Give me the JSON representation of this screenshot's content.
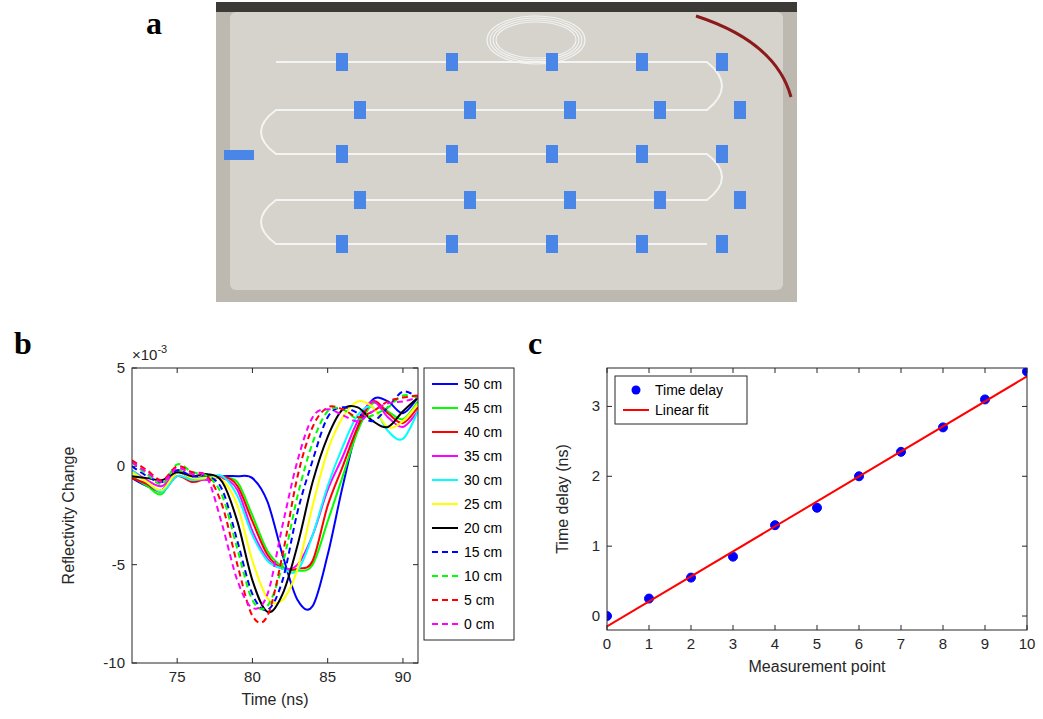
{
  "photo_panel": {
    "label": "a"
  },
  "chart_data": [
    {
      "type": "line",
      "label": "b",
      "xlabel": "Time (ns)",
      "ylabel": "Reflectivity Change",
      "y_multiplier": {
        "base": "×10",
        "exponent": "-3"
      },
      "x": [
        72,
        73,
        74,
        75,
        76,
        77,
        78,
        79,
        80,
        81,
        82,
        83,
        84,
        85,
        86,
        87,
        88,
        89,
        90,
        91
      ],
      "xlim": [
        72,
        91
      ],
      "xticks": [
        75,
        80,
        85,
        90
      ],
      "ylim": [
        -10,
        5
      ],
      "yticks": [
        -10,
        -5,
        0,
        5
      ],
      "grid": false,
      "legend": "right",
      "series": [
        {
          "name": "50 cm",
          "color": "#0000ff",
          "line_style": "solid",
          "values": [
            -0.6,
            -1.0,
            -1.2,
            -0.3,
            -0.6,
            -0.5,
            -0.5,
            -0.5,
            -0.6,
            -1.8,
            -4.5,
            -6.8,
            -7.1,
            -4.5,
            -1.0,
            2.0,
            3.4,
            3.3,
            2.7,
            3.5
          ]
        },
        {
          "name": "45 cm",
          "color": "#00ff00",
          "line_style": "solid",
          "values": [
            -0.5,
            -1.0,
            -1.4,
            -0.2,
            -0.7,
            -0.5,
            -0.6,
            -0.8,
            -2.5,
            -4.3,
            -5.1,
            -5.3,
            -5.0,
            -2.8,
            -0.5,
            1.8,
            3.2,
            2.8,
            2.4,
            3.3
          ]
        },
        {
          "name": "40 cm",
          "color": "#ff0000",
          "line_style": "solid",
          "values": [
            -0.6,
            -0.9,
            -1.3,
            -0.5,
            -0.8,
            -0.6,
            -0.5,
            -1.0,
            -2.8,
            -4.5,
            -5.2,
            -5.2,
            -4.8,
            -2.0,
            0.0,
            2.0,
            3.3,
            2.7,
            2.2,
            3.0
          ]
        },
        {
          "name": "35 cm",
          "color": "#ff00ff",
          "line_style": "solid",
          "values": [
            -0.2,
            -0.7,
            -1.0,
            -0.3,
            -0.6,
            -0.7,
            -0.6,
            -1.2,
            -3.3,
            -4.7,
            -5.2,
            -5.0,
            -3.5,
            -1.2,
            0.5,
            2.3,
            3.3,
            2.5,
            2.0,
            2.8
          ]
        },
        {
          "name": "30 cm",
          "color": "#00ffff",
          "line_style": "solid",
          "values": [
            -0.2,
            -0.8,
            -1.3,
            -0.5,
            -0.7,
            -0.6,
            -0.5,
            -1.5,
            -3.5,
            -4.8,
            -5.2,
            -5.3,
            -3.5,
            -1.0,
            1.0,
            2.6,
            3.0,
            1.8,
            1.4,
            2.8
          ]
        },
        {
          "name": "25 cm",
          "color": "#ffff00",
          "line_style": "solid",
          "values": [
            -0.3,
            -0.8,
            -1.2,
            -0.3,
            -0.6,
            -0.6,
            -0.7,
            -2.0,
            -4.8,
            -6.7,
            -6.8,
            -5.2,
            -2.0,
            0.8,
            2.5,
            3.3,
            3.0,
            2.0,
            2.3,
            3.2
          ]
        },
        {
          "name": "20 cm",
          "color": "#000000",
          "line_style": "solid",
          "values": [
            -0.5,
            -0.6,
            -0.7,
            -0.3,
            -0.5,
            -0.4,
            -0.8,
            -2.8,
            -5.8,
            -7.4,
            -6.5,
            -4.0,
            -0.8,
            1.5,
            2.9,
            3.0,
            2.3,
            2.0,
            2.8,
            3.5
          ]
        },
        {
          "name": "15 cm",
          "color": "#0000ff",
          "line_style": "dashed",
          "values": [
            0.0,
            -0.5,
            -0.8,
            -0.2,
            -0.5,
            -0.5,
            -1.2,
            -3.8,
            -6.5,
            -7.3,
            -5.8,
            -2.3,
            0.3,
            2.5,
            3.0,
            2.7,
            2.3,
            3.0,
            3.8,
            3.5
          ]
        },
        {
          "name": "10 cm",
          "color": "#00ff00",
          "line_style": "dashed",
          "values": [
            0.2,
            -0.4,
            -0.9,
            0.1,
            -0.3,
            -0.5,
            -1.5,
            -4.2,
            -6.8,
            -7.1,
            -5.0,
            -1.5,
            1.2,
            2.8,
            2.9,
            2.4,
            2.6,
            3.0,
            3.6,
            3.5
          ]
        },
        {
          "name": "5 cm",
          "color": "#ff0000",
          "line_style": "dashed",
          "values": [
            0.3,
            -0.2,
            -0.7,
            0.0,
            -0.3,
            -0.5,
            -2.0,
            -5.0,
            -7.6,
            -7.6,
            -4.5,
            -0.5,
            2.0,
            3.0,
            2.9,
            2.5,
            2.8,
            3.3,
            3.5,
            3.6
          ]
        },
        {
          "name": "0 cm",
          "color": "#ff00ff",
          "line_style": "dashed",
          "values": [
            0.2,
            -0.3,
            -0.8,
            -0.1,
            -0.4,
            -0.6,
            -3.0,
            -5.8,
            -7.2,
            -6.5,
            -3.0,
            0.3,
            2.5,
            2.9,
            2.6,
            2.3,
            2.8,
            3.2,
            3.3,
            3.5
          ]
        }
      ]
    },
    {
      "type": "scatter",
      "label": "c",
      "xlabel": "Measurement point",
      "ylabel": "Time delay (ns)",
      "xlim": [
        0,
        10
      ],
      "xticks": [
        0,
        1,
        2,
        3,
        4,
        5,
        6,
        7,
        8,
        9,
        10
      ],
      "ylim": [
        -0.2,
        3.55
      ],
      "yticks": [
        0,
        1,
        2,
        3
      ],
      "grid": false,
      "legend": "upper left",
      "series": [
        {
          "name": "Time delay",
          "type": "scatter",
          "color": "#0000ff",
          "marker": "circle",
          "x": [
            0,
            1,
            2,
            3,
            4,
            5,
            6,
            7,
            8,
            9,
            10
          ],
          "values": [
            0,
            0.25,
            0.55,
            0.85,
            1.3,
            1.55,
            2.0,
            2.35,
            2.7,
            3.1,
            3.5
          ]
        },
        {
          "name": "Linear fit",
          "type": "line",
          "color": "#ff0000",
          "line_style": "solid",
          "x": [
            0,
            10
          ],
          "values": [
            -0.15,
            3.43
          ]
        }
      ]
    }
  ]
}
